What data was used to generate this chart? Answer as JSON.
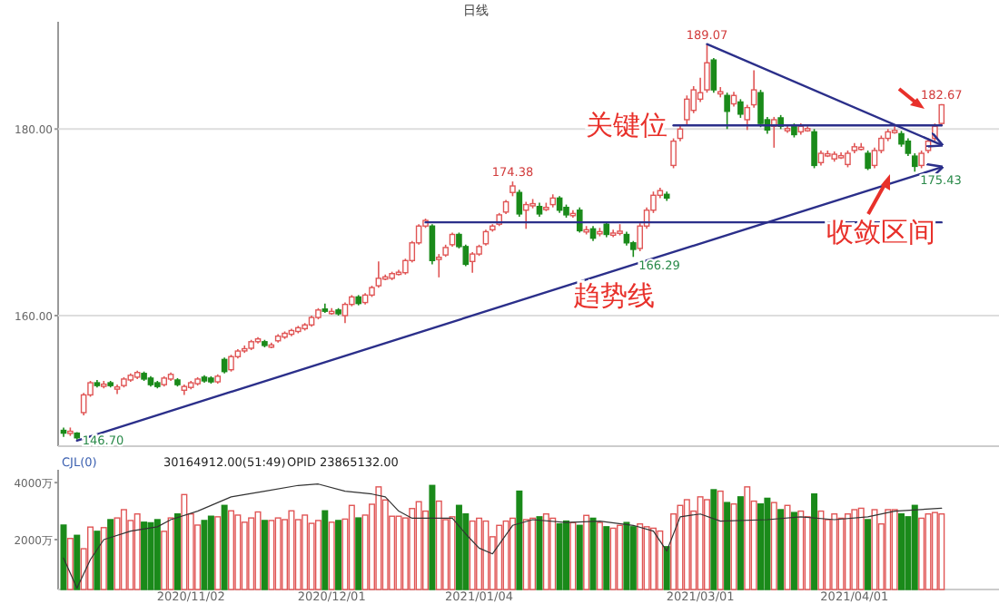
{
  "chart_data": [
    {
      "type": "candlestick",
      "subtitle": "日线",
      "tick_labels": "y",
      "grid": "y",
      "categories": [
        null,
        null,
        null,
        null,
        null,
        null,
        null,
        null,
        null,
        null,
        null,
        null,
        null,
        null,
        null,
        null,
        null,
        null,
        null,
        null,
        null,
        null,
        null,
        null,
        null,
        null,
        null,
        null,
        null,
        null,
        null,
        null,
        null,
        null,
        null,
        null,
        null,
        null,
        null,
        null,
        null,
        null,
        null,
        null,
        null,
        null,
        null,
        null,
        null,
        null,
        null,
        null,
        null,
        null,
        null,
        null,
        null,
        null,
        null,
        null,
        null,
        null,
        null,
        null,
        null,
        null,
        null,
        null,
        null,
        null,
        null,
        null,
        null,
        null,
        null,
        null,
        null,
        null,
        null,
        null,
        null,
        null,
        null,
        null,
        null,
        null,
        null,
        null,
        null,
        null,
        null,
        null,
        null,
        null,
        null,
        null,
        null,
        null,
        null,
        null,
        null,
        null,
        null,
        null,
        null,
        null,
        null,
        null,
        null,
        null,
        null,
        null,
        null,
        null,
        null,
        null,
        null,
        null,
        null,
        null,
        null,
        null,
        null,
        null,
        null,
        null,
        null,
        null,
        null,
        null,
        null,
        null
      ],
      "ylim": [
        146,
        191.5
      ],
      "yticks": [
        {
          "value": 180,
          "label": "180.00"
        },
        {
          "value": 160,
          "label": "160.00"
        }
      ],
      "ohlc": [
        [
          147.7,
          148.0,
          147.0,
          147.4
        ],
        [
          147.4,
          148.0,
          147.1,
          147.6
        ],
        [
          147.4,
          147.5,
          146.7,
          146.9
        ],
        [
          149.6,
          151.7,
          149.3,
          151.5
        ],
        [
          151.5,
          153.0,
          151.3,
          152.8
        ],
        [
          152.8,
          153.1,
          152.3,
          152.5
        ],
        [
          152.6,
          153.0,
          152.2,
          152.65
        ],
        [
          152.8,
          153.0,
          152.3,
          152.5
        ],
        [
          152.3,
          152.6,
          151.6,
          152.35
        ],
        [
          152.5,
          153.4,
          152.3,
          153.2
        ],
        [
          153.1,
          153.8,
          152.9,
          153.6
        ],
        [
          153.4,
          154.1,
          153.2,
          153.9
        ],
        [
          153.8,
          154.0,
          153.0,
          153.2
        ],
        [
          153.3,
          153.5,
          152.4,
          152.6
        ],
        [
          152.8,
          153.0,
          152.2,
          152.4
        ],
        [
          152.6,
          153.5,
          152.4,
          153.3
        ],
        [
          153.2,
          153.9,
          153.0,
          153.7
        ],
        [
          153.1,
          153.3,
          152.4,
          152.6
        ],
        [
          152.0,
          152.6,
          151.5,
          152.4
        ],
        [
          152.3,
          153.0,
          152.1,
          152.8
        ],
        [
          152.7,
          153.4,
          152.5,
          153.2
        ],
        [
          153.4,
          153.6,
          152.8,
          153.0
        ],
        [
          153.3,
          153.5,
          152.7,
          152.9
        ],
        [
          152.9,
          153.7,
          152.7,
          153.5
        ],
        [
          155.3,
          155.5,
          153.8,
          154.0
        ],
        [
          154.2,
          155.8,
          154.0,
          155.6
        ],
        [
          155.6,
          156.4,
          155.4,
          156.2
        ],
        [
          156.4,
          156.8,
          156.0,
          156.45
        ],
        [
          156.5,
          157.4,
          156.3,
          157.2
        ],
        [
          157.2,
          157.7,
          157.0,
          157.5
        ],
        [
          157.2,
          157.4,
          156.6,
          156.8
        ],
        [
          156.8,
          157.1,
          156.5,
          156.85
        ],
        [
          157.3,
          158.0,
          157.1,
          157.8
        ],
        [
          157.7,
          158.3,
          157.5,
          158.1
        ],
        [
          158.0,
          158.6,
          157.8,
          158.4
        ],
        [
          158.3,
          158.9,
          158.1,
          158.7
        ],
        [
          158.6,
          159.2,
          158.4,
          159.0
        ],
        [
          159.0,
          160.0,
          158.8,
          159.8
        ],
        [
          159.8,
          160.8,
          159.6,
          160.6
        ],
        [
          160.7,
          161.3,
          160.3,
          160.6
        ],
        [
          160.4,
          160.8,
          160.1,
          160.45
        ],
        [
          160.6,
          160.8,
          160.0,
          160.2
        ],
        [
          160.0,
          161.4,
          159.2,
          161.2
        ],
        [
          161.2,
          162.2,
          161.0,
          162.0
        ],
        [
          162.0,
          162.2,
          161.1,
          161.3
        ],
        [
          161.4,
          162.4,
          161.2,
          162.2
        ],
        [
          162.2,
          163.2,
          162.0,
          163.0
        ],
        [
          163.2,
          165.8,
          163.0,
          164.0
        ],
        [
          164.1,
          164.4,
          163.8,
          164.15
        ],
        [
          164.0,
          164.7,
          163.8,
          164.5
        ],
        [
          164.6,
          164.9,
          164.3,
          164.65
        ],
        [
          164.6,
          166.1,
          164.4,
          165.9
        ],
        [
          165.9,
          168.0,
          165.7,
          167.8
        ],
        [
          167.8,
          169.8,
          167.6,
          169.6
        ],
        [
          169.6,
          170.4,
          169.4,
          170.2
        ],
        [
          169.6,
          169.8,
          165.5,
          165.9
        ],
        [
          166.2,
          166.6,
          164.1,
          166.25
        ],
        [
          166.5,
          167.6,
          166.3,
          167.3
        ],
        [
          167.6,
          168.9,
          167.4,
          168.7
        ],
        [
          168.7,
          168.9,
          167.2,
          167.4
        ],
        [
          167.4,
          167.6,
          165.3,
          165.5
        ],
        [
          165.8,
          166.8,
          164.6,
          166.6
        ],
        [
          166.6,
          167.6,
          166.4,
          167.4
        ],
        [
          167.7,
          169.2,
          167.5,
          169.0
        ],
        [
          169.2,
          169.8,
          169.0,
          169.6
        ],
        [
          169.8,
          171.0,
          169.6,
          170.8
        ],
        [
          171.1,
          172.4,
          170.9,
          172.2
        ],
        [
          173.2,
          174.38,
          172.8,
          173.9
        ],
        [
          173.2,
          173.5,
          170.6,
          170.9
        ],
        [
          171.3,
          172.2,
          169.3,
          171.9
        ],
        [
          171.9,
          172.5,
          171.5,
          172.0
        ],
        [
          171.7,
          172.1,
          170.6,
          170.9
        ],
        [
          171.5,
          172.1,
          171.2,
          171.6
        ],
        [
          171.9,
          173.0,
          171.6,
          172.6
        ],
        [
          172.6,
          172.8,
          171.0,
          171.3
        ],
        [
          171.6,
          171.9,
          170.5,
          170.8
        ],
        [
          170.9,
          171.3,
          170.5,
          170.95
        ],
        [
          171.3,
          171.6,
          168.9,
          169.1
        ],
        [
          169.1,
          169.6,
          168.7,
          169.2
        ],
        [
          169.3,
          169.6,
          168.0,
          168.3
        ],
        [
          168.9,
          169.4,
          168.5,
          169.0
        ],
        [
          169.8,
          170.0,
          168.4,
          168.7
        ],
        [
          168.8,
          169.2,
          168.4,
          168.85
        ],
        [
          169.0,
          169.8,
          168.6,
          169.05
        ],
        [
          168.7,
          169.0,
          167.5,
          167.8
        ],
        [
          167.8,
          168.0,
          166.29,
          167.1
        ],
        [
          167.2,
          169.9,
          166.9,
          169.6
        ],
        [
          169.6,
          171.6,
          169.3,
          171.3
        ],
        [
          171.3,
          173.3,
          171.0,
          172.9
        ],
        [
          172.9,
          173.7,
          172.6,
          173.4
        ],
        [
          173.0,
          173.3,
          172.3,
          172.6
        ],
        [
          176.1,
          179.0,
          175.8,
          178.7
        ],
        [
          179.0,
          180.4,
          178.7,
          180.0
        ],
        [
          181.0,
          183.6,
          180.5,
          183.2
        ],
        [
          182.0,
          184.6,
          181.7,
          184.2
        ],
        [
          183.2,
          185.5,
          182.9,
          183.9
        ],
        [
          184.2,
          189.07,
          183.9,
          187.1
        ],
        [
          187.4,
          187.6,
          183.9,
          184.2
        ],
        [
          183.9,
          184.5,
          183.4,
          184.0
        ],
        [
          183.6,
          183.9,
          180.0,
          181.9
        ],
        [
          182.7,
          184.0,
          182.4,
          183.6
        ],
        [
          182.9,
          183.2,
          181.2,
          181.6
        ],
        [
          181.0,
          182.6,
          179.9,
          182.3
        ],
        [
          182.6,
          186.3,
          182.3,
          184.2
        ],
        [
          183.9,
          184.2,
          180.2,
          180.6
        ],
        [
          181.0,
          181.3,
          179.5,
          179.9
        ],
        [
          180.3,
          181.3,
          178.0,
          181.0
        ],
        [
          181.2,
          181.5,
          180.0,
          180.3
        ],
        [
          180.0,
          180.4,
          179.6,
          180.05
        ],
        [
          180.3,
          180.6,
          179.1,
          179.4
        ],
        [
          179.7,
          180.6,
          179.4,
          180.3
        ],
        [
          180.0,
          180.3,
          179.7,
          180.05
        ],
        [
          179.7,
          180.0,
          175.8,
          176.1
        ],
        [
          176.4,
          177.7,
          176.1,
          177.4
        ],
        [
          177.3,
          177.7,
          177.0,
          177.35
        ],
        [
          176.8,
          177.6,
          176.5,
          177.3
        ],
        [
          177.1,
          177.5,
          176.8,
          177.15
        ],
        [
          176.2,
          177.7,
          175.9,
          177.4
        ],
        [
          177.7,
          178.5,
          177.4,
          178.1
        ],
        [
          178.0,
          178.5,
          177.7,
          178.05
        ],
        [
          177.4,
          177.7,
          175.6,
          175.8
        ],
        [
          176.1,
          178.0,
          175.8,
          177.7
        ],
        [
          177.7,
          179.3,
          177.4,
          179.0
        ],
        [
          179.0,
          180.0,
          178.7,
          179.7
        ],
        [
          179.8,
          180.3,
          179.5,
          179.85
        ],
        [
          179.5,
          179.8,
          178.1,
          178.4
        ],
        [
          178.7,
          179.0,
          177.1,
          177.4
        ],
        [
          177.1,
          177.4,
          175.43,
          176.0
        ],
        [
          176.1,
          177.7,
          175.8,
          177.4
        ],
        [
          177.7,
          179.0,
          177.4,
          178.7
        ],
        [
          179.0,
          180.6,
          178.7,
          180.3
        ],
        [
          180.6,
          182.67,
          180.3,
          182.6
        ]
      ],
      "series": [
        {
          "type": "line",
          "color": "#2b2f8a",
          "values": [
            null,
            null,
            null,
            null,
            null,
            null,
            null,
            null,
            null,
            null,
            null,
            null,
            null,
            null,
            null,
            null,
            null,
            null,
            null,
            null,
            null,
            null,
            null,
            null,
            null,
            null,
            null,
            null,
            null,
            null,
            null,
            null,
            null,
            null,
            null,
            null,
            null,
            null,
            null,
            null,
            null,
            null,
            null,
            null,
            null,
            null,
            null,
            null,
            null,
            null,
            null,
            null,
            null,
            null,
            170,
            null,
            null,
            null,
            null,
            null,
            null,
            null,
            null,
            null,
            null,
            null,
            null,
            null,
            null,
            null,
            null,
            null,
            null,
            null,
            null,
            null,
            null,
            null,
            null,
            null,
            null,
            null,
            null,
            null,
            null,
            null,
            null,
            null,
            null,
            null,
            null,
            null,
            null,
            null,
            null,
            null,
            null,
            null,
            null,
            null,
            null,
            null,
            null,
            null,
            null,
            null,
            null,
            null,
            null,
            null,
            null,
            null,
            null,
            null,
            null,
            null,
            null,
            null,
            null,
            null,
            null,
            null,
            null,
            null,
            null,
            null,
            null,
            null,
            null,
            null,
            null,
            170
          ]
        },
        {
          "type": "line",
          "color": "#2b2f8a",
          "values": [
            null,
            null,
            null,
            null,
            null,
            null,
            null,
            null,
            null,
            null,
            null,
            null,
            null,
            null,
            null,
            null,
            null,
            null,
            null,
            null,
            null,
            null,
            null,
            null,
            null,
            null,
            null,
            null,
            null,
            null,
            null,
            null,
            null,
            null,
            null,
            null,
            null,
            null,
            null,
            null,
            null,
            null,
            null,
            null,
            null,
            null,
            null,
            null,
            null,
            null,
            null,
            null,
            null,
            null,
            null,
            null,
            null,
            null,
            null,
            null,
            null,
            null,
            null,
            null,
            null,
            null,
            null,
            null,
            null,
            null,
            null,
            null,
            null,
            null,
            null,
            null,
            null,
            null,
            null,
            null,
            null,
            null,
            null,
            null,
            null,
            null,
            null,
            null,
            null,
            null,
            null,
            180.4,
            null,
            null,
            null,
            null,
            null,
            null,
            null,
            null,
            null,
            null,
            null,
            null,
            null,
            null,
            null,
            null,
            null,
            null,
            null,
            null,
            null,
            null,
            null,
            null,
            null,
            null,
            null,
            null,
            null,
            null,
            null,
            null,
            null,
            null,
            null,
            null,
            null,
            null,
            null,
            180.4
          ]
        },
        {
          "type": "line",
          "color": "#2b2f8a",
          "values": [
            null,
            null,
            146.6,
            null,
            null,
            null,
            null,
            null,
            null,
            null,
            null,
            null,
            null,
            null,
            null,
            null,
            null,
            null,
            null,
            null,
            null,
            null,
            null,
            null,
            null,
            null,
            null,
            null,
            null,
            null,
            null,
            null,
            null,
            null,
            null,
            null,
            null,
            null,
            null,
            null,
            null,
            null,
            null,
            null,
            null,
            null,
            null,
            null,
            null,
            null,
            null,
            null,
            null,
            null,
            null,
            null,
            null,
            null,
            null,
            null,
            null,
            null,
            null,
            null,
            null,
            null,
            null,
            null,
            null,
            null,
            null,
            null,
            null,
            null,
            null,
            null,
            null,
            null,
            null,
            null,
            null,
            null,
            null,
            null,
            null,
            null,
            null,
            null,
            null,
            null,
            null,
            null,
            null,
            null,
            null,
            null,
            null,
            null,
            null,
            null,
            null,
            null,
            null,
            null,
            null,
            null,
            null,
            null,
            null,
            null,
            null,
            null,
            null,
            null,
            null,
            null,
            null,
            null,
            null,
            null,
            null,
            null,
            null,
            null,
            null,
            null,
            null,
            null,
            null,
            null,
            null,
            175.9
          ]
        },
        {
          "type": "line",
          "color": "#2b2f8a",
          "values": [
            null,
            null,
            null,
            null,
            null,
            null,
            null,
            null,
            null,
            null,
            null,
            null,
            null,
            null,
            null,
            null,
            null,
            null,
            null,
            null,
            null,
            null,
            null,
            null,
            null,
            null,
            null,
            null,
            null,
            null,
            null,
            null,
            null,
            null,
            null,
            null,
            null,
            null,
            null,
            null,
            null,
            null,
            null,
            null,
            null,
            null,
            null,
            null,
            null,
            null,
            null,
            null,
            null,
            null,
            null,
            null,
            null,
            null,
            null,
            null,
            null,
            null,
            null,
            null,
            null,
            null,
            null,
            null,
            null,
            null,
            null,
            null,
            null,
            null,
            null,
            null,
            null,
            null,
            null,
            null,
            null,
            null,
            null,
            null,
            null,
            null,
            null,
            null,
            null,
            null,
            null,
            null,
            null,
            null,
            null,
            null,
            189.1,
            null,
            null,
            null,
            null,
            null,
            null,
            null,
            null,
            null,
            null,
            null,
            null,
            null,
            null,
            null,
            null,
            null,
            null,
            null,
            null,
            null,
            null,
            null,
            null,
            null,
            null,
            null,
            null,
            null,
            null,
            null,
            null,
            null,
            null,
            178.3
          ]
        }
      ],
      "annotations": [
        {
          "text": "189.07",
          "y": 189.07
        },
        {
          "text": "174.38",
          "y": 174.38
        },
        {
          "text": "166.29",
          "y": 166.29
        },
        {
          "text": "175.43",
          "y": 175.43
        },
        {
          "text": "182.67",
          "y": 182.67
        },
        {
          "text": "146.70",
          "y": 146.7
        },
        "关键位",
        "趋势线",
        "收敛区间"
      ]
    },
    {
      "type": "bar",
      "title": "CJL(0)",
      "annotations": [
        "30164912.00(51:49)",
        "OPID 23865132.00"
      ],
      "categories": [
        null,
        null,
        null,
        null,
        null,
        null,
        null,
        null,
        null,
        null,
        null,
        null,
        null,
        null,
        null,
        null,
        null,
        null,
        null,
        "2020/11/02",
        null,
        null,
        null,
        null,
        null,
        null,
        null,
        null,
        null,
        null,
        null,
        null,
        null,
        null,
        null,
        null,
        null,
        null,
        null,
        null,
        "2020/12/01",
        null,
        null,
        null,
        null,
        null,
        null,
        null,
        null,
        null,
        null,
        null,
        null,
        null,
        null,
        null,
        null,
        null,
        null,
        null,
        null,
        null,
        "2021/01/04",
        null,
        null,
        null,
        null,
        null,
        null,
        null,
        null,
        null,
        null,
        null,
        null,
        null,
        null,
        null,
        null,
        null,
        null,
        null,
        null,
        null,
        null,
        null,
        null,
        null,
        null,
        null,
        null,
        null,
        null,
        null,
        null,
        "2021/03/01",
        null,
        null,
        null,
        null,
        null,
        null,
        null,
        null,
        null,
        null,
        null,
        null,
        null,
        null,
        null,
        null,
        null,
        null,
        null,
        null,
        null,
        null,
        "2021/04/01",
        null,
        null,
        null,
        null,
        null,
        null,
        null,
        null,
        null,
        null,
        null,
        null,
        null
      ],
      "ylim": [
        250,
        4450
      ],
      "yticks": [
        {
          "value": 4000,
          "label": "4000万"
        },
        {
          "value": 2000,
          "label": "2000万"
        }
      ],
      "series": [
        {
          "values": [
            2510,
            2040,
            2150,
            1680,
            2440,
            2290,
            2420,
            2700,
            2760,
            3050,
            2670,
            2900,
            2610,
            2590,
            2700,
            2290,
            2760,
            2900,
            3580,
            2900,
            2510,
            2670,
            2820,
            2800,
            3200,
            3010,
            2860,
            2610,
            2760,
            2970,
            2670,
            2670,
            2760,
            2700,
            3010,
            2700,
            2860,
            2570,
            2670,
            3010,
            2610,
            2670,
            2720,
            3200,
            2760,
            2860,
            3240,
            3850,
            3390,
            2820,
            2820,
            2760,
            3090,
            3330,
            3000,
            3900,
            3350,
            2700,
            2800,
            3200,
            2900,
            2650,
            2750,
            2650,
            2100,
            2500,
            2650,
            2750,
            3700,
            2700,
            2750,
            2800,
            2900,
            2750,
            2550,
            2650,
            2600,
            2500,
            2850,
            2750,
            2600,
            2450,
            2400,
            2500,
            2600,
            2450,
            2550,
            2450,
            2400,
            2300,
            1750,
            2900,
            3200,
            3400,
            3000,
            3500,
            3400,
            3750,
            3700,
            3300,
            3250,
            3500,
            3850,
            3350,
            3250,
            3450,
            3300,
            3050,
            3200,
            2950,
            3000,
            2800,
            3600,
            3000,
            2700,
            2900,
            2750,
            2900,
            3050,
            3100,
            2700,
            3050,
            2550,
            3050,
            3050,
            2900,
            2800,
            3200,
            2750,
            2900,
            2950,
            2900
          ],
          "colors": [
            "#1a8a1a",
            "#e05555",
            "#1a8a1a",
            "#e05555",
            "#e05555",
            "#1a8a1a",
            "#e05555",
            "#1a8a1a",
            "#e05555",
            "#e05555",
            "#e05555",
            "#e05555",
            "#1a8a1a",
            "#1a8a1a",
            "#1a8a1a",
            "#e05555",
            "#e05555",
            "#1a8a1a",
            "#e05555",
            "#e05555",
            "#e05555",
            "#1a8a1a",
            "#1a8a1a",
            "#e05555",
            "#1a8a1a",
            "#e05555",
            "#e05555",
            "#e05555",
            "#e05555",
            "#e05555",
            "#1a8a1a",
            "#e05555",
            "#e05555",
            "#e05555",
            "#e05555",
            "#e05555",
            "#e05555",
            "#e05555",
            "#e05555",
            "#1a8a1a",
            "#e05555",
            "#1a8a1a",
            "#e05555",
            "#e05555",
            "#1a8a1a",
            "#e05555",
            "#e05555",
            "#e05555",
            "#e05555",
            "#e05555",
            "#e05555",
            "#e05555",
            "#e05555",
            "#e05555",
            "#e05555",
            "#1a8a1a",
            "#e05555",
            "#e05555",
            "#e05555",
            "#1a8a1a",
            "#1a8a1a",
            "#e05555",
            "#e05555",
            "#e05555",
            "#e05555",
            "#e05555",
            "#e05555",
            "#e05555",
            "#1a8a1a",
            "#e05555",
            "#e05555",
            "#1a8a1a",
            "#e05555",
            "#e05555",
            "#1a8a1a",
            "#1a8a1a",
            "#e05555",
            "#1a8a1a",
            "#e05555",
            "#1a8a1a",
            "#e05555",
            "#1a8a1a",
            "#e05555",
            "#e05555",
            "#1a8a1a",
            "#1a8a1a",
            "#e05555",
            "#e05555",
            "#e05555",
            "#e05555",
            "#1a8a1a",
            "#e05555",
            "#e05555",
            "#e05555",
            "#e05555",
            "#e05555",
            "#e05555",
            "#1a8a1a",
            "#e05555",
            "#1a8a1a",
            "#e05555",
            "#1a8a1a",
            "#e05555",
            "#e05555",
            "#1a8a1a",
            "#1a8a1a",
            "#e05555",
            "#1a8a1a",
            "#e05555",
            "#1a8a1a",
            "#e05555",
            "#e05555",
            "#1a8a1a",
            "#e05555",
            "#e05555",
            "#e05555",
            "#e05555",
            "#e05555",
            "#e05555",
            "#e05555",
            "#1a8a1a",
            "#e05555",
            "#e05555",
            "#e05555",
            "#e05555",
            "#1a8a1a",
            "#1a8a1a",
            "#1a8a1a",
            "#e05555",
            "#e05555",
            "#e05555",
            "#e05555"
          ]
        },
        {
          "type": "line",
          "color": "#333333",
          "values": [
            1350,
            null,
            300,
            null,
            1300,
            null,
            2000,
            null,
            null,
            null,
            2300,
            null,
            null,
            null,
            2450,
            null,
            2700,
            null,
            null,
            null,
            3000,
            null,
            null,
            null,
            null,
            3500,
            null,
            null,
            null,
            null,
            3700,
            null,
            null,
            null,
            null,
            3900,
            null,
            null,
            3950,
            null,
            null,
            null,
            3700,
            null,
            null,
            null,
            3600,
            null,
            3500,
            null,
            3000,
            null,
            2750,
            null,
            null,
            null,
            null,
            null,
            2750,
            null,
            2200,
            null,
            1700,
            null,
            1500,
            null,
            null,
            2500,
            null,
            null,
            2700,
            null,
            null,
            null,
            null,
            2600,
            null,
            null,
            null,
            null,
            2650,
            null,
            null,
            null,
            null,
            2500,
            null,
            null,
            2300,
            null,
            1600,
            null,
            2800,
            null,
            null,
            2900,
            null,
            null,
            2650,
            null,
            null,
            null,
            null,
            null,
            null,
            2700,
            null,
            null,
            null,
            null,
            2800,
            null,
            null,
            null,
            null,
            2700,
            null,
            null,
            null,
            null,
            2800,
            null,
            null,
            null,
            3000,
            null,
            null,
            null,
            null,
            null,
            null,
            3100
          ]
        }
      ]
    }
  ]
}
